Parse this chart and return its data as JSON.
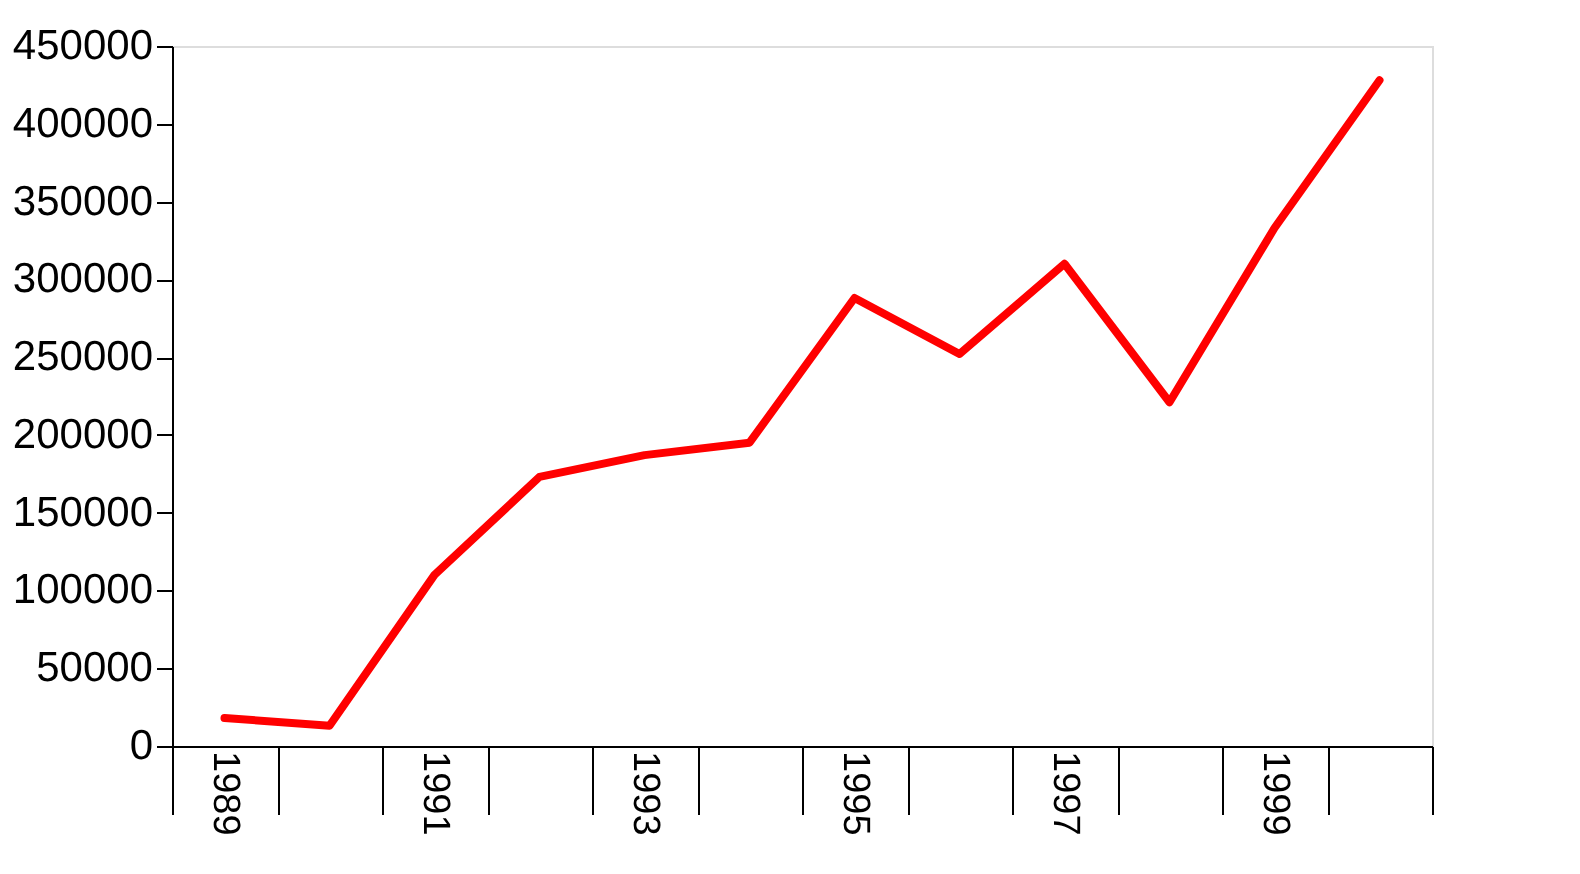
{
  "chart_data": {
    "type": "line",
    "categories": [
      "1989",
      null,
      "1991",
      null,
      "1993",
      null,
      "1995",
      null,
      "1997",
      null,
      "1999",
      null
    ],
    "series": [
      {
        "color": "#ff0000",
        "values": [
          18000,
          13000,
          110000,
          173000,
          187000,
          195000,
          288000,
          252000,
          310000,
          221000,
          333000,
          428000
        ]
      }
    ],
    "ylim": [
      0,
      450000
    ],
    "yticks": [
      0,
      50000,
      100000,
      150000,
      200000,
      250000,
      300000,
      350000,
      400000,
      450000
    ],
    "grid": false,
    "legend": false,
    "marker": "none",
    "line_style": "solid"
  }
}
